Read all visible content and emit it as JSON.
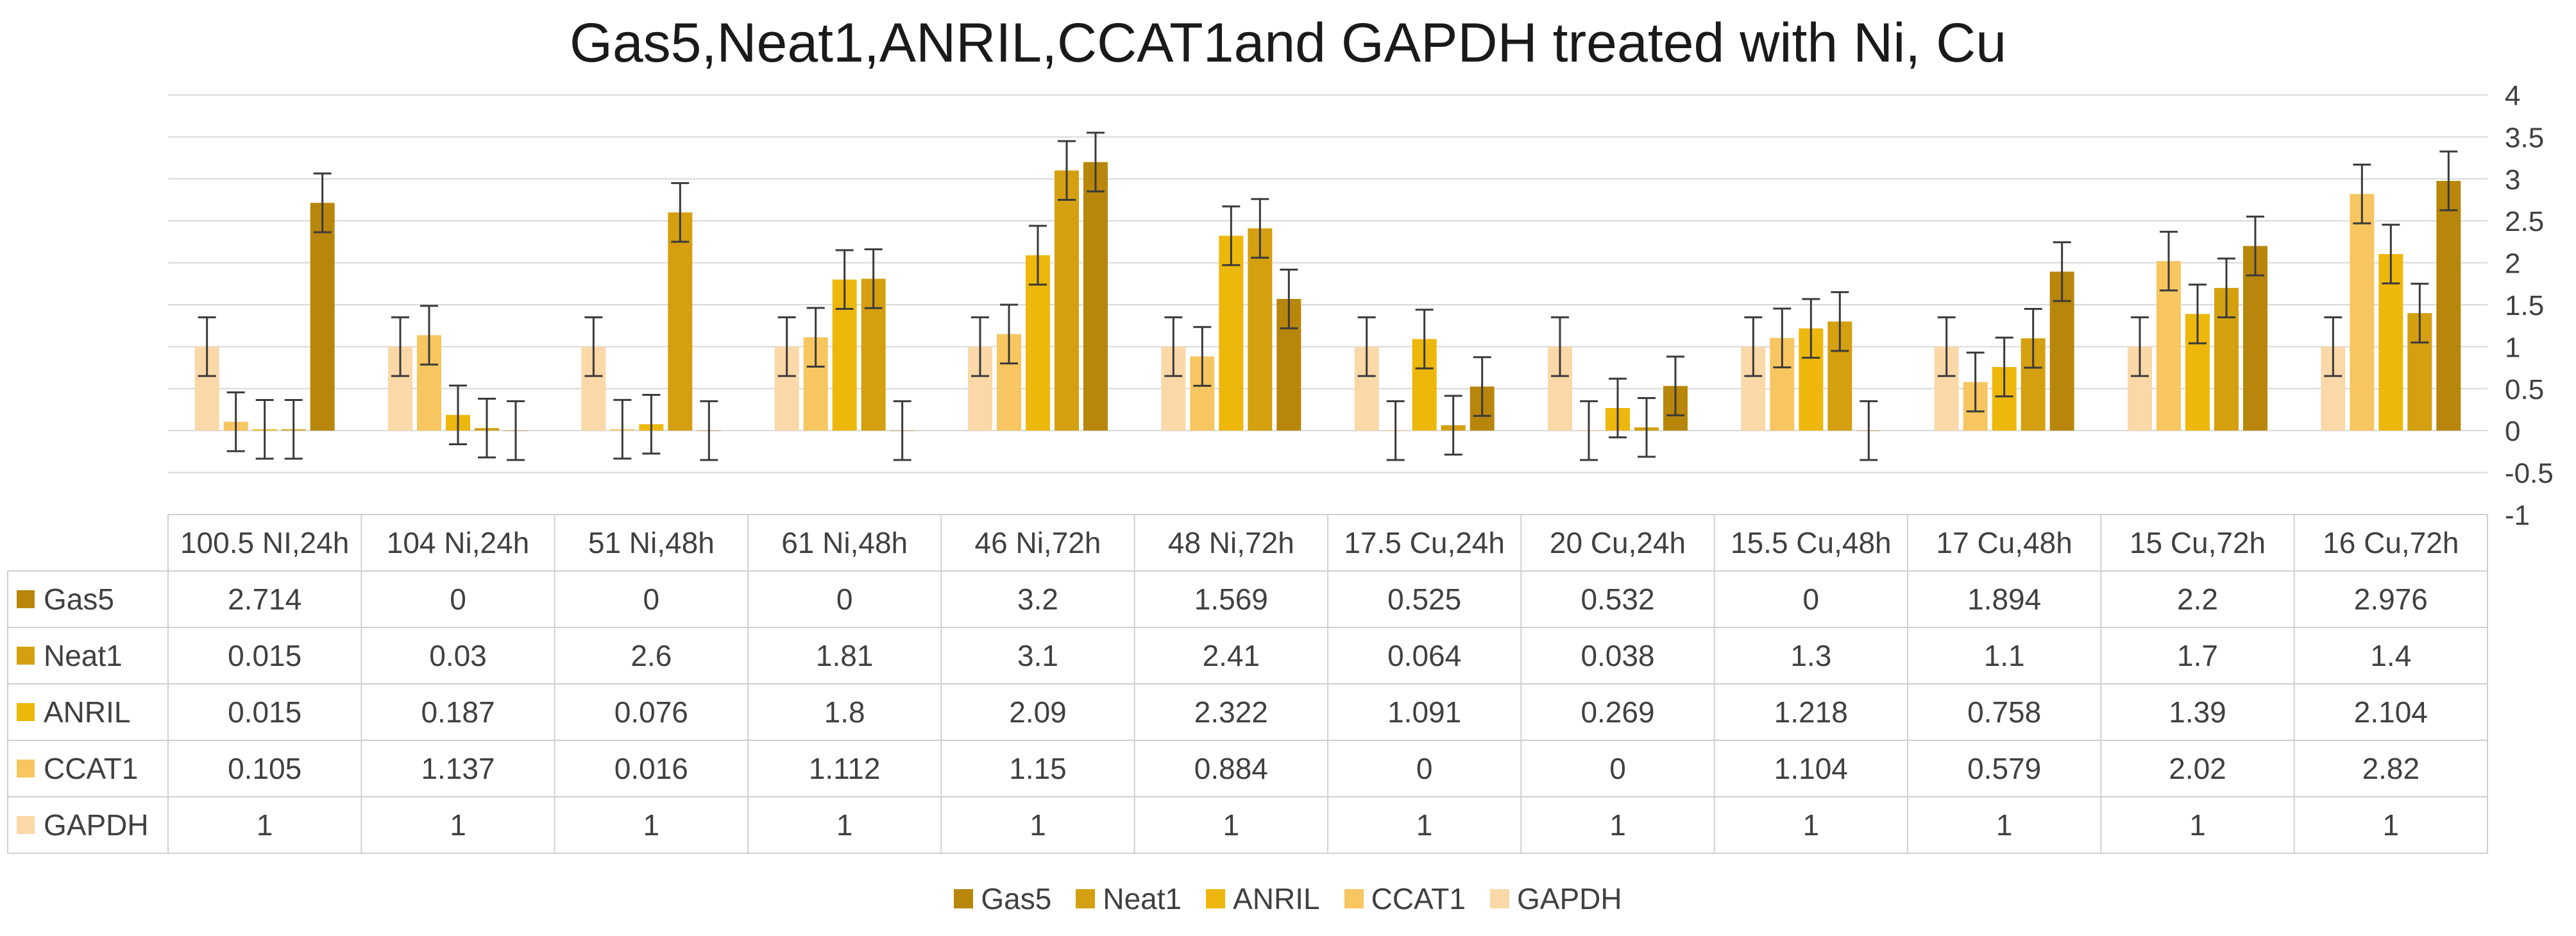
{
  "chart_data": {
    "type": "bar",
    "title": "Gas5,Neat1,ANRIL,CCAT1and  GAPDH treated with Ni, Cu",
    "xlabel": "",
    "ylabel": "",
    "ylim": [
      -1,
      4
    ],
    "yticks": [
      "4",
      "3.5",
      "3",
      "2.5",
      "2",
      "1.5",
      "1",
      "0.5",
      "0",
      "-0.5",
      "-1"
    ],
    "grid": true,
    "legend_position": "bottom",
    "data_table": true,
    "categories": [
      "100.5 NI,24h",
      "104 Ni,24h",
      "51 Ni,48h",
      "61 Ni,48h",
      "46 Ni,72h",
      "48 Ni,72h",
      "17.5 Cu,24h",
      "20 Cu,24h",
      "15.5 Cu,48h",
      "17 Cu,48h",
      "15 Cu,72h",
      "16 Cu,72h"
    ],
    "series": [
      {
        "name": "Gas5",
        "color": "#B8860B",
        "values": [
          2.714,
          0,
          0,
          0,
          3.2,
          1.569,
          0.525,
          0.532,
          0,
          1.894,
          2.2,
          2.976
        ],
        "labels": [
          "2.714",
          "0",
          "0",
          "0",
          "3.2",
          "1.569",
          "0.525",
          "0.532",
          "0",
          "1.894",
          "2.2",
          "2.976"
        ]
      },
      {
        "name": "Neat1",
        "color": "#D4A010",
        "values": [
          0.015,
          0.03,
          2.6,
          1.81,
          3.1,
          2.41,
          0.064,
          0.038,
          1.3,
          1.1,
          1.7,
          1.4
        ],
        "labels": [
          "0.015",
          "0.03",
          "2.6",
          "1.81",
          "3.1",
          "2.41",
          "0.064",
          "0.038",
          "1.3",
          "1.1",
          "1.7",
          "1.4"
        ]
      },
      {
        "name": "ANRIL",
        "color": "#EDB80B",
        "values": [
          0.015,
          0.187,
          0.076,
          1.8,
          2.09,
          2.322,
          1.091,
          0.269,
          1.218,
          0.758,
          1.39,
          2.104
        ],
        "labels": [
          "0.015",
          "0.187",
          "0.076",
          "1.8",
          "2.09",
          "2.322",
          "1.091",
          "0.269",
          "1.218",
          "0.758",
          "1.39",
          "2.104"
        ]
      },
      {
        "name": "CCAT1",
        "color": "#F7C660",
        "values": [
          0.105,
          1.137,
          0.016,
          1.112,
          1.15,
          0.884,
          0,
          0,
          1.104,
          0.579,
          2.02,
          2.82
        ],
        "labels": [
          "0.105",
          "1.137",
          "0.016",
          "1.112",
          "1.15",
          "0.884",
          "0",
          "0",
          "1.104",
          "0.579",
          "2.02",
          "2.82"
        ]
      },
      {
        "name": "GAPDH",
        "color": "#FAD8A8",
        "values": [
          1,
          1,
          1,
          1,
          1,
          1,
          1,
          1,
          1,
          1,
          1,
          1
        ],
        "labels": [
          "1",
          "1",
          "1",
          "1",
          "1",
          "1",
          "1",
          "1",
          "1",
          "1",
          "1",
          "1"
        ]
      }
    ],
    "error_bar": 0.35
  }
}
